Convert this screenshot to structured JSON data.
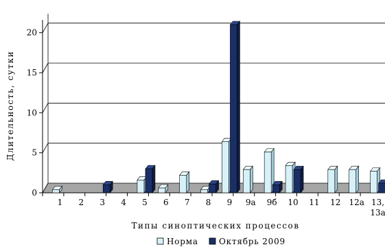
{
  "chart_data": {
    "type": "bar",
    "title": "",
    "xlabel": "Типы синоптических процессов",
    "ylabel": "Длительность, сутки",
    "ylim": [
      0,
      22
    ],
    "yticks": [
      0,
      5,
      10,
      15,
      20
    ],
    "grid": true,
    "legend_position": "bottom",
    "categories": [
      "1",
      "2",
      "3",
      "4",
      "5",
      "6",
      "7",
      "8",
      "9",
      "9а",
      "9б",
      "10",
      "11",
      "12",
      "12а",
      "13, 13а"
    ],
    "series": [
      {
        "name": "Норма",
        "color": "#d8f1f9",
        "values": [
          0.4,
          0,
          0,
          0,
          1.6,
          0.6,
          2.2,
          0.4,
          6.4,
          2.9,
          5.1,
          3.4,
          0,
          2.9,
          2.9,
          2.7
        ]
      },
      {
        "name": "Октябрь 2009",
        "color": "#1a2f66",
        "values": [
          0,
          0,
          1.0,
          0,
          3.0,
          0,
          0,
          1.1,
          21.0,
          0,
          1.0,
          2.9,
          0,
          0,
          0,
          1.2
        ]
      }
    ]
  }
}
